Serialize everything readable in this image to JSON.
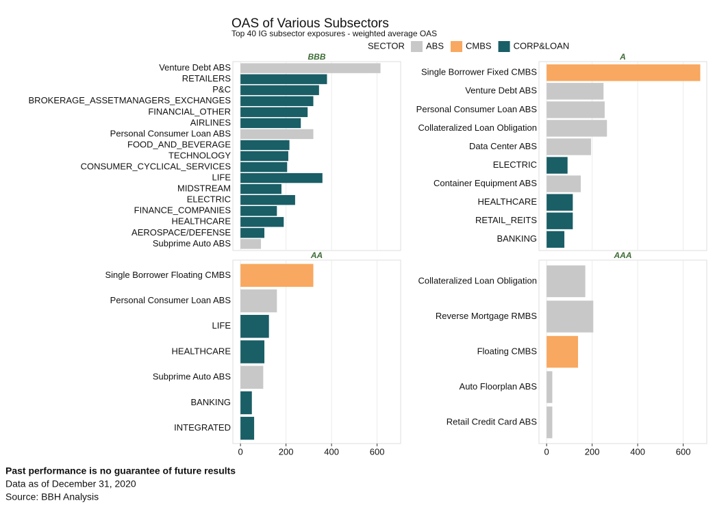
{
  "title": "OAS of Various Subsectors",
  "subtitle": "Top 40 IG subsector exposures - weighted average OAS",
  "legend": {
    "title": "SECTOR",
    "items": [
      {
        "name": "ABS",
        "color": "#c8c8c8"
      },
      {
        "name": "CMBS",
        "color": "#f8a860"
      },
      {
        "name": "CORP&LOAN",
        "color": "#1a5e66"
      }
    ]
  },
  "chart_data": [
    {
      "type": "bar",
      "orientation": "horizontal",
      "title": "BBB",
      "categories": [
        "Venture Debt ABS",
        "RETAILERS",
        "P&C",
        "BROKERAGE_ASSETMANAGERS_EXCHANGES",
        "FINANCIAL_OTHER",
        "AIRLINES",
        "Personal Consumer Loan ABS",
        "FOOD_AND_BEVERAGE",
        "TECHNOLOGY",
        "CONSUMER_CYCLICAL_SERVICES",
        "LIFE",
        "MIDSTREAM",
        "ELECTRIC",
        "FINANCE_COMPANIES",
        "HEALTHCARE",
        "AEROSPACE/DEFENSE",
        "Subprime Auto ABS"
      ],
      "values": [
        615,
        380,
        345,
        320,
        295,
        265,
        320,
        215,
        210,
        205,
        360,
        180,
        240,
        160,
        190,
        105,
        90
      ],
      "colors": [
        "#c8c8c8",
        "#1a5e66",
        "#1a5e66",
        "#1a5e66",
        "#1a5e66",
        "#1a5e66",
        "#c8c8c8",
        "#1a5e66",
        "#1a5e66",
        "#1a5e66",
        "#1a5e66",
        "#1a5e66",
        "#1a5e66",
        "#1a5e66",
        "#1a5e66",
        "#1a5e66",
        "#c8c8c8"
      ],
      "xlim": [
        -33.5,
        703.5
      ],
      "xticks": [
        0,
        200,
        400,
        600
      ],
      "grid": true
    },
    {
      "type": "bar",
      "orientation": "horizontal",
      "title": "A",
      "categories": [
        "Single Borrower Fixed CMBS",
        "Venture Debt ABS",
        "Personal Consumer Loan ABS",
        "Collateralized Loan Obligation",
        "Data Center ABS",
        "ELECTRIC",
        "Container Equipment ABS",
        "HEALTHCARE",
        "RETAIL_REITS",
        "BANKING"
      ],
      "values": [
        675,
        250,
        255,
        265,
        195,
        92,
        150,
        115,
        115,
        78
      ],
      "colors": [
        "#f8a860",
        "#c8c8c8",
        "#c8c8c8",
        "#c8c8c8",
        "#c8c8c8",
        "#1a5e66",
        "#c8c8c8",
        "#1a5e66",
        "#1a5e66",
        "#1a5e66"
      ],
      "xlim": [
        -33.5,
        703.5
      ],
      "xticks": [
        0,
        200,
        400,
        600
      ],
      "grid": true
    },
    {
      "type": "bar",
      "orientation": "horizontal",
      "title": "AA",
      "categories": [
        "Single Borrower Floating CMBS",
        "Personal Consumer Loan ABS",
        "LIFE",
        "HEALTHCARE",
        "Subprime Auto ABS",
        "BANKING",
        "INTEGRATED"
      ],
      "values": [
        320,
        160,
        125,
        105,
        100,
        50,
        60
      ],
      "colors": [
        "#f8a860",
        "#c8c8c8",
        "#1a5e66",
        "#1a5e66",
        "#c8c8c8",
        "#1a5e66",
        "#1a5e66"
      ],
      "xlim": [
        -33.5,
        703.5
      ],
      "xticks": [
        0,
        200,
        400,
        600
      ],
      "grid": true
    },
    {
      "type": "bar",
      "orientation": "horizontal",
      "title": "AAA",
      "categories": [
        "Collateralized Loan Obligation",
        "Reverse Mortgage RMBS",
        "Floating CMBS",
        "Auto Floorplan ABS",
        "Retail Credit Card ABS"
      ],
      "values": [
        170,
        205,
        138,
        25,
        25
      ],
      "colors": [
        "#c8c8c8",
        "#c8c8c8",
        "#f8a860",
        "#c8c8c8",
        "#c8c8c8"
      ],
      "xlim": [
        -33.5,
        703.5
      ],
      "xticks": [
        0,
        200,
        400,
        600
      ],
      "grid": true
    }
  ],
  "footer": [
    "Past performance is no guarantee of future results",
    "Data as of December 31, 2020",
    "Source: BBH Analysis"
  ]
}
